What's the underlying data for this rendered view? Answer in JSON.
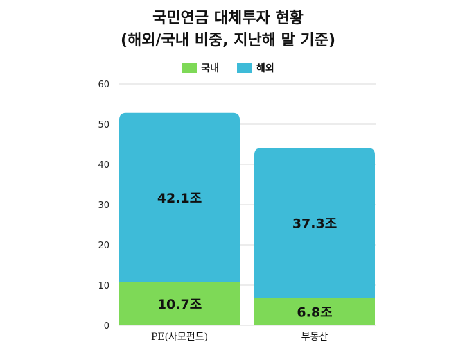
{
  "chart_data": {
    "type": "bar",
    "stacked": true,
    "title_line1": "국민연금 대체투자 현황",
    "title_line2": "(해외/국내 비중, 지난해 말 기준)",
    "categories": [
      "PE(사모펀드)",
      "부동산"
    ],
    "series": [
      {
        "name": "국내",
        "values": [
          10.7,
          6.8
        ],
        "labels": [
          "10.7조",
          "6.8조"
        ],
        "color": "#7ed957"
      },
      {
        "name": "해외",
        "values": [
          42.1,
          37.3
        ],
        "labels": [
          "42.1조",
          "37.3조"
        ],
        "color": "#3ebbd8"
      }
    ],
    "ylim": [
      0,
      60
    ],
    "yticks": [
      "0",
      "10",
      "20",
      "30",
      "40",
      "50",
      "60"
    ],
    "grid": true,
    "legend_position": "top-center"
  }
}
